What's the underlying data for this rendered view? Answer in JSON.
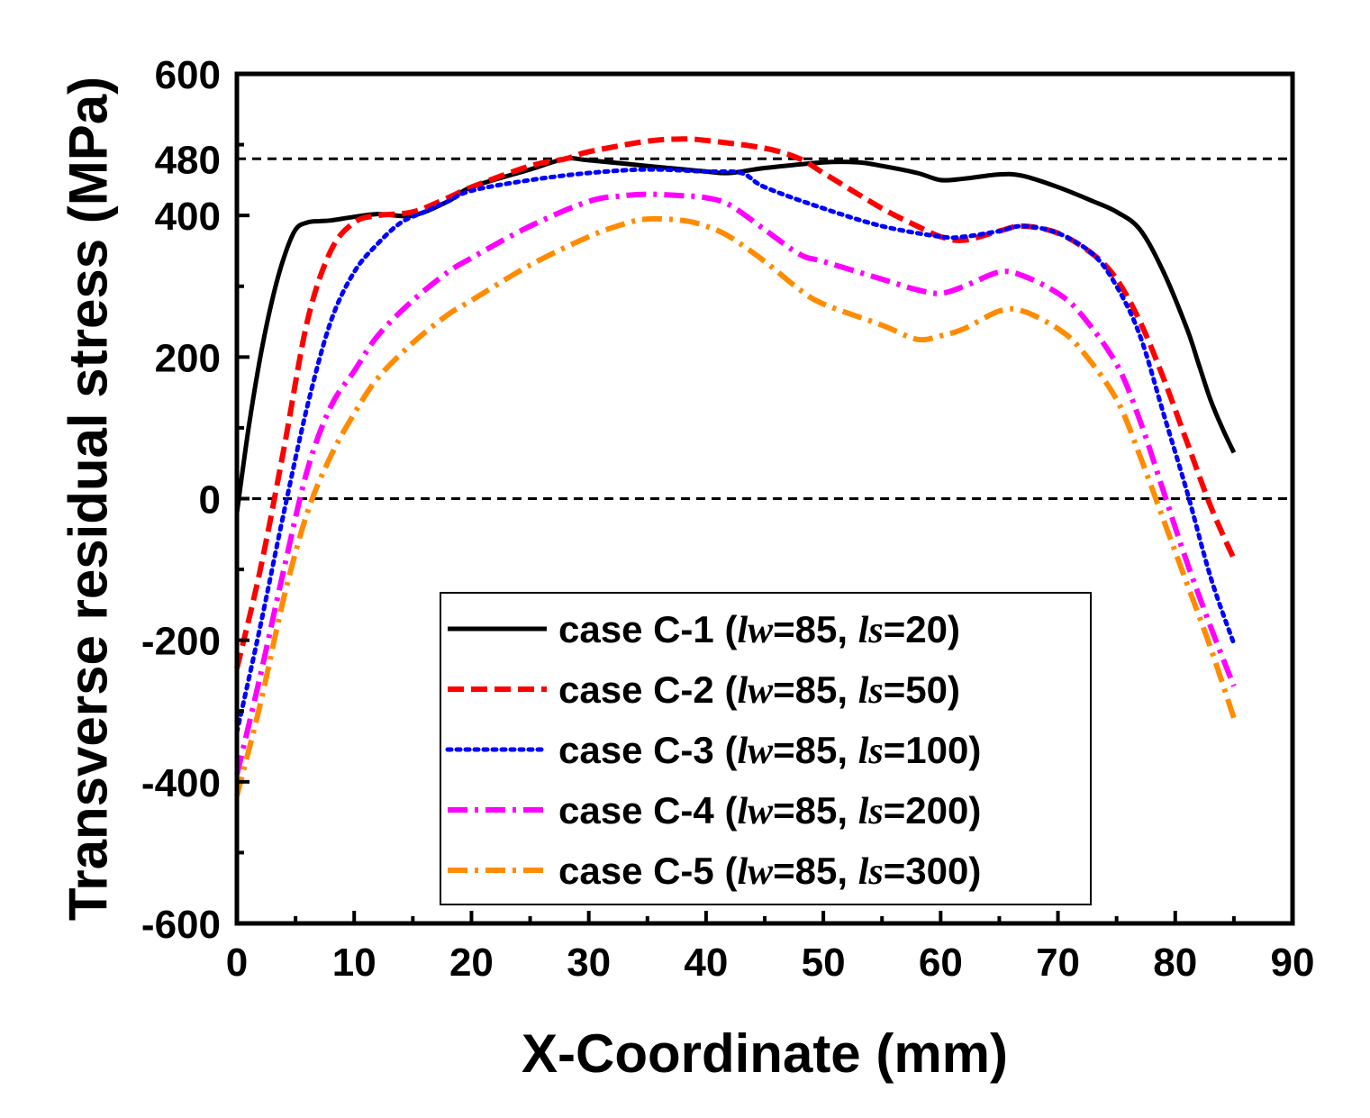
{
  "chart_data": {
    "type": "line",
    "title": "",
    "xlabel": "X-Coordinate (mm)",
    "ylabel": "Transverse residual stress (MPa)",
    "xlim": [
      0,
      90
    ],
    "ylim": [
      -600,
      600
    ],
    "x_ticks": [
      0,
      10,
      20,
      30,
      40,
      50,
      60,
      70,
      80,
      90
    ],
    "x_tick_labels": [
      "0",
      "10",
      "20",
      "30",
      "40",
      "50",
      "60",
      "70",
      "80",
      "90"
    ],
    "y_ticks": [
      -600,
      -400,
      -200,
      0,
      200,
      400,
      480,
      600
    ],
    "y_tick_labels": [
      "-600",
      "-400",
      "-200",
      "0",
      "200",
      "400",
      "480",
      "600"
    ],
    "grid": false,
    "reference_lines": [
      {
        "y": 480,
        "style": "dashed"
      },
      {
        "y": 0,
        "style": "dashed"
      }
    ],
    "legend_position": "bottom-center",
    "series": [
      {
        "name": "case C-1 (lw=85, ls=20)",
        "legend": {
          "prefix": "case C-1 (",
          "sym1": "lw",
          "mid": "=85, ",
          "sym2": "ls",
          "suffix": "=20)"
        },
        "color": "#000000",
        "dash": "solid",
        "x": [
          0,
          1,
          2,
          3,
          4,
          5,
          6,
          7,
          8,
          10,
          12,
          15,
          18,
          20,
          25,
          28,
          30,
          35,
          40,
          42,
          45,
          50,
          53,
          55,
          58,
          60,
          62,
          65,
          67,
          70,
          73,
          75,
          77,
          79,
          81,
          82,
          83,
          84,
          85
        ],
        "y": [
          -20,
          100,
          200,
          280,
          340,
          380,
          390,
          392,
          393,
          398,
          402,
          400,
          420,
          440,
          465,
          480,
          478,
          470,
          462,
          460,
          467,
          475,
          475,
          470,
          460,
          450,
          452,
          458,
          456,
          440,
          420,
          405,
          380,
          320,
          240,
          190,
          140,
          100,
          65
        ]
      },
      {
        "name": "case C-2 (lw=85, ls=50)",
        "legend": {
          "prefix": "case C-2 (",
          "sym1": "lw",
          "mid": "=85, ",
          "sym2": "ls",
          "suffix": "=50)"
        },
        "color": "#ff0000",
        "dash": "18,8",
        "x": [
          0,
          2,
          4,
          6,
          8,
          10,
          12,
          15,
          18,
          20,
          25,
          28,
          30,
          35,
          38,
          40,
          45,
          48,
          50,
          55,
          58,
          60,
          62,
          65,
          67,
          70,
          73,
          75,
          77,
          79,
          81,
          83,
          85
        ],
        "y": [
          -240,
          -100,
          70,
          250,
          350,
          390,
          400,
          405,
          425,
          440,
          470,
          480,
          490,
          505,
          508,
          506,
          495,
          480,
          460,
          410,
          385,
          370,
          365,
          378,
          385,
          375,
          345,
          310,
          250,
          170,
          80,
          -10,
          -85
        ]
      },
      {
        "name": "case C-3 (lw=85, ls=100)",
        "legend": {
          "prefix": "case C-3 (",
          "sym1": "lw",
          "mid": "=85, ",
          "sym2": "ls",
          "suffix": "=100)"
        },
        "color": "#0000ff",
        "dash": "4,6",
        "x": [
          0,
          2,
          4,
          6,
          8,
          10,
          12,
          14,
          16,
          18,
          20,
          25,
          30,
          35,
          40,
          43,
          45,
          50,
          55,
          60,
          62,
          65,
          67,
          70,
          73,
          75,
          77,
          79,
          81,
          83,
          85
        ],
        "y": [
          -330,
          -180,
          -20,
          130,
          250,
          320,
          360,
          390,
          405,
          420,
          435,
          450,
          460,
          465,
          462,
          460,
          440,
          410,
          385,
          370,
          370,
          378,
          385,
          375,
          345,
          300,
          230,
          120,
          10,
          -110,
          -205
        ]
      },
      {
        "name": "case C-4 (lw=85, ls=200)",
        "legend": {
          "prefix": "case C-4 (",
          "sym1": "lw",
          "mid": "=85, ",
          "sym2": "ls",
          "suffix": "=200)"
        },
        "color": "#ff00ff",
        "dash": "22,8,4,8",
        "x": [
          0,
          2,
          4,
          6,
          8,
          10,
          12,
          15,
          18,
          20,
          25,
          30,
          33,
          35,
          38,
          40,
          42,
          45,
          48,
          50,
          55,
          58,
          60,
          62,
          65,
          67,
          70,
          72,
          75,
          77,
          79,
          81,
          83,
          85
        ],
        "y": [
          -390,
          -250,
          -100,
          40,
          130,
          180,
          230,
          280,
          320,
          340,
          385,
          420,
          428,
          430,
          428,
          425,
          415,
          380,
          345,
          335,
          310,
          295,
          290,
          300,
          320,
          315,
          290,
          260,
          190,
          110,
          10,
          -90,
          -180,
          -265
        ]
      },
      {
        "name": "case C-5 (lw=85, ls=300)",
        "legend": {
          "prefix": "case C-5 (",
          "sym1": "lw",
          "mid": "=85, ",
          "sym2": "ls",
          "suffix": "=300)"
        },
        "color": "#ff8c00",
        "dash": "22,8,4,8",
        "x": [
          0,
          2,
          4,
          6,
          8,
          10,
          12,
          15,
          18,
          20,
          25,
          30,
          33,
          35,
          38,
          40,
          42,
          45,
          48,
          50,
          55,
          58,
          60,
          62,
          65,
          67,
          70,
          72,
          75,
          77,
          79,
          81,
          83,
          85
        ],
        "y": [
          -420,
          -290,
          -140,
          -20,
          60,
          120,
          170,
          220,
          260,
          280,
          330,
          370,
          388,
          395,
          393,
          385,
          370,
          335,
          295,
          275,
          245,
          225,
          230,
          240,
          265,
          265,
          240,
          210,
          140,
          60,
          -30,
          -120,
          -210,
          -310
        ]
      }
    ]
  }
}
